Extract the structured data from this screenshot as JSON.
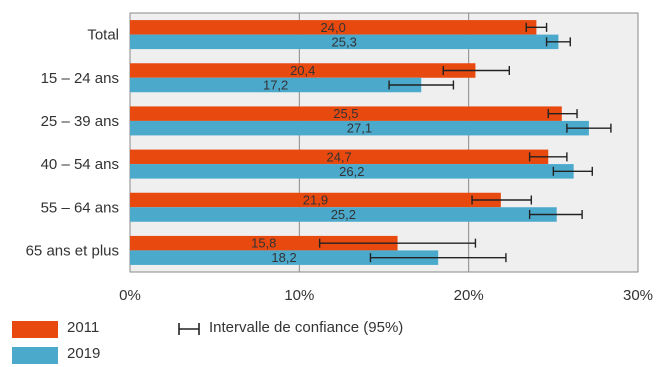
{
  "chart_data": {
    "type": "bar",
    "orientation": "horizontal",
    "categories": [
      "Total",
      "15 – 24 ans",
      "25 – 39 ans",
      "40 – 54 ans",
      "55 – 64 ans",
      "65 ans et plus"
    ],
    "series": [
      {
        "name": "2011",
        "color": "#e8490f",
        "values": [
          24.0,
          20.4,
          25.5,
          24.7,
          21.9,
          15.8
        ],
        "labels": [
          "24,0",
          "20,4",
          "25,5",
          "24,7",
          "21,9",
          "15,8"
        ],
        "ci_low": [
          23.4,
          18.5,
          24.7,
          23.6,
          20.2,
          11.2
        ],
        "ci_high": [
          24.6,
          22.4,
          26.4,
          25.8,
          23.7,
          20.4
        ]
      },
      {
        "name": "2019",
        "color": "#4ba9cc",
        "values": [
          25.3,
          17.2,
          27.1,
          26.2,
          25.2,
          18.2
        ],
        "labels": [
          "25,3",
          "17,2",
          "27,1",
          "26,2",
          "25,2",
          "18,2"
        ],
        "ci_low": [
          24.6,
          15.3,
          25.8,
          25.0,
          23.6,
          14.2
        ],
        "ci_high": [
          26.0,
          19.1,
          28.4,
          27.3,
          26.7,
          22.2
        ]
      }
    ],
    "xlim": [
      0,
      30
    ],
    "xticks": [
      "0%",
      "10%",
      "20%",
      "30%"
    ],
    "xtick_values": [
      0,
      10,
      20,
      30
    ],
    "grid": true,
    "legend": [
      "2011",
      "2019"
    ],
    "legend_placement": "bottom",
    "ci_legend_label": "Intervalle de confiance (95%)"
  }
}
